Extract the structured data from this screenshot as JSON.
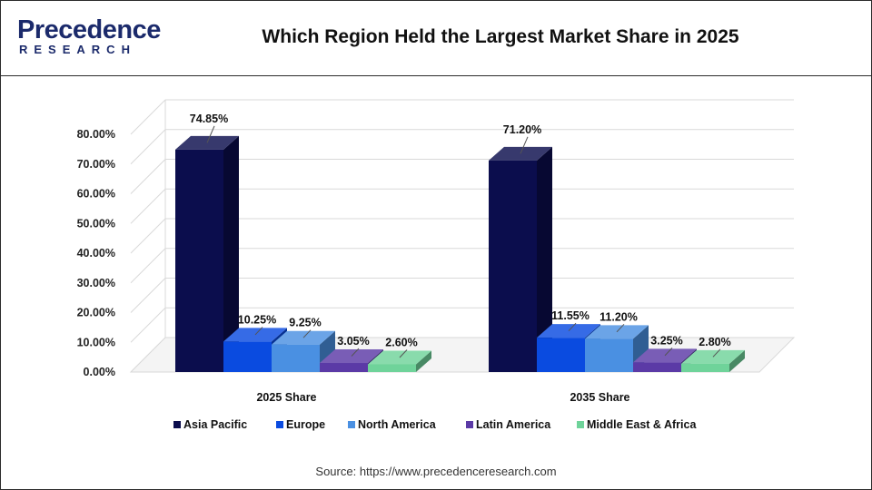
{
  "header": {
    "logo_main": "Precedence",
    "logo_sub": "RESEARCH",
    "title": "Which Region Held the Largest Market Share in 2025"
  },
  "source": "Source: https://www.precedenceresearch.com",
  "colors": {
    "asia_pacific": "#0b0d4d",
    "europe": "#0a4be0",
    "north_america": "#4a90e2",
    "latin_america": "#5b3aa6",
    "middle_east_africa": "#6fd39a",
    "brand": "#1b2a6b"
  },
  "chart_data": {
    "type": "bar",
    "style": "3d-clustered",
    "title": "Which Region Held the Largest Market Share in 2025",
    "xlabel": "",
    "ylabel": "",
    "categories": [
      "2025 Share",
      "2035 Share"
    ],
    "series": [
      {
        "name": "Asia Pacific",
        "values": [
          74.85,
          71.2
        ],
        "labels": [
          "74.85%",
          "71.20%"
        ],
        "color": "#0b0d4d"
      },
      {
        "name": "Europe",
        "values": [
          10.25,
          11.55
        ],
        "labels": [
          "10.25%",
          "11.55%"
        ],
        "color": "#0a4be0"
      },
      {
        "name": "North America",
        "values": [
          9.25,
          11.2
        ],
        "labels": [
          "9.25%",
          "11.20%"
        ],
        "color": "#4a90e2"
      },
      {
        "name": "Latin America",
        "values": [
          3.05,
          3.25
        ],
        "labels": [
          "3.05%",
          "3.25%"
        ],
        "color": "#5b3aa6"
      },
      {
        "name": "Middle East & Africa",
        "values": [
          2.6,
          2.8
        ],
        "labels": [
          "2.60%",
          "2.80%"
        ],
        "color": "#6fd39a"
      }
    ],
    "yticks": [
      "0.00%",
      "10.00%",
      "20.00%",
      "30.00%",
      "40.00%",
      "50.00%",
      "60.00%",
      "70.00%",
      "80.00%"
    ],
    "ylim": [
      0,
      80
    ],
    "grid": true,
    "legend_position": "bottom"
  }
}
